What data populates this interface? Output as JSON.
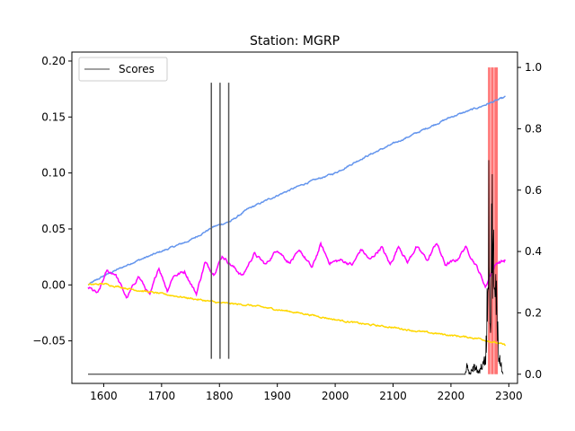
{
  "chart_data": {
    "type": "line",
    "title": "Station: MGRP",
    "xlabel": "",
    "ylabel_left": "",
    "ylabel_right": "",
    "xlim": [
      1545,
      2315
    ],
    "ylim_left": [
      -0.088,
      0.208
    ],
    "ylim_right": [
      -0.03,
      1.05
    ],
    "x_ticks": [
      1600,
      1700,
      1800,
      1900,
      2000,
      2100,
      2200,
      2300
    ],
    "y_ticks_left": [
      -0.05,
      0.0,
      0.05,
      0.1,
      0.15,
      0.2
    ],
    "y_ticks_right": [
      0.0,
      0.2,
      0.4,
      0.6,
      0.8,
      1.0
    ],
    "x_tick_labels": [
      "1600",
      "1700",
      "1800",
      "1900",
      "2000",
      "2100",
      "2200",
      "2300"
    ],
    "y_tick_labels_left": [
      "−0.05",
      "0.00",
      "0.05",
      "0.10",
      "0.15",
      "0.20"
    ],
    "y_tick_labels_right": [
      "0.0",
      "0.2",
      "0.4",
      "0.6",
      "0.8",
      "1.0"
    ],
    "legend": {
      "placement": "upper-left",
      "entries": [
        "Scores"
      ]
    },
    "grid": false,
    "colors": {
      "blue": "#6495ed",
      "magenta": "#ff00ff",
      "gold": "#ffd700",
      "scores": "#000000",
      "vlines": "#555555",
      "highlight": "#ff0000"
    },
    "series": [
      {
        "axis": "left",
        "color": "#6495ed",
        "style": "wiggle",
        "x": [
          1573,
          1600,
          1650,
          1700,
          1750,
          1790,
          1820,
          1850,
          1900,
          1950,
          2000,
          2050,
          2100,
          2150,
          2200,
          2250,
          2295
        ],
        "values": [
          0.0,
          0.008,
          0.02,
          0.03,
          0.04,
          0.052,
          0.057,
          0.068,
          0.08,
          0.091,
          0.1,
          0.114,
          0.126,
          0.138,
          0.15,
          0.159,
          0.168
        ]
      },
      {
        "axis": "left",
        "color": "#ff00ff",
        "style": "oscillate",
        "x": [
          1573,
          1590,
          1605,
          1620,
          1640,
          1660,
          1680,
          1695,
          1710,
          1720,
          1740,
          1760,
          1775,
          1790,
          1805,
          1820,
          1840,
          1860,
          1880,
          1900,
          1920,
          1940,
          1960,
          1975,
          1990,
          2010,
          2030,
          2045,
          2060,
          2080,
          2095,
          2110,
          2125,
          2140,
          2160,
          2175,
          2190,
          2210,
          2225,
          2245,
          2260,
          2270,
          2280,
          2295
        ],
        "values": [
          -0.002,
          -0.008,
          0.012,
          0.01,
          -0.012,
          0.008,
          -0.01,
          0.016,
          -0.005,
          0.008,
          0.012,
          -0.008,
          0.02,
          0.01,
          0.026,
          0.018,
          0.008,
          0.028,
          0.018,
          0.032,
          0.02,
          0.03,
          0.015,
          0.036,
          0.02,
          0.022,
          0.018,
          0.032,
          0.022,
          0.034,
          0.018,
          0.035,
          0.02,
          0.034,
          0.022,
          0.038,
          0.018,
          0.022,
          0.034,
          0.016,
          -0.002,
          0.012,
          0.02,
          0.022
        ]
      },
      {
        "axis": "left",
        "color": "#ffd700",
        "style": "wiggle",
        "x": [
          1573,
          1600,
          1650,
          1700,
          1750,
          1800,
          1850,
          1900,
          1950,
          2000,
          2050,
          2100,
          2150,
          2200,
          2250,
          2295
        ],
        "values": [
          0.0,
          0.001,
          -0.004,
          -0.008,
          -0.012,
          -0.016,
          -0.018,
          -0.022,
          -0.026,
          -0.031,
          -0.035,
          -0.038,
          -0.042,
          -0.045,
          -0.048,
          -0.054
        ]
      },
      {
        "axis": "right",
        "color": "#000000",
        "style": "spiky",
        "name": "Scores",
        "x": [
          1573,
          2225,
          2228,
          2232,
          2240,
          2248,
          2255,
          2260,
          2263,
          2266,
          2268,
          2271,
          2273,
          2276,
          2279,
          2282,
          2285,
          2290
        ],
        "values": [
          0.0,
          0.0,
          0.025,
          0.0,
          0.02,
          0.01,
          0.03,
          0.05,
          0.25,
          0.55,
          0.1,
          0.52,
          0.4,
          0.2,
          0.3,
          0.06,
          0.05,
          0.0
        ]
      }
    ],
    "vertical_lines": [
      1786,
      1801,
      1816
    ],
    "vertical_lines_range_right": [
      0.05,
      0.95
    ],
    "highlight_spans": [
      [
        2264,
        2268
      ],
      [
        2269,
        2274
      ],
      [
        2275,
        2281
      ]
    ],
    "highlight_range_right": [
      0.0,
      1.0
    ]
  }
}
